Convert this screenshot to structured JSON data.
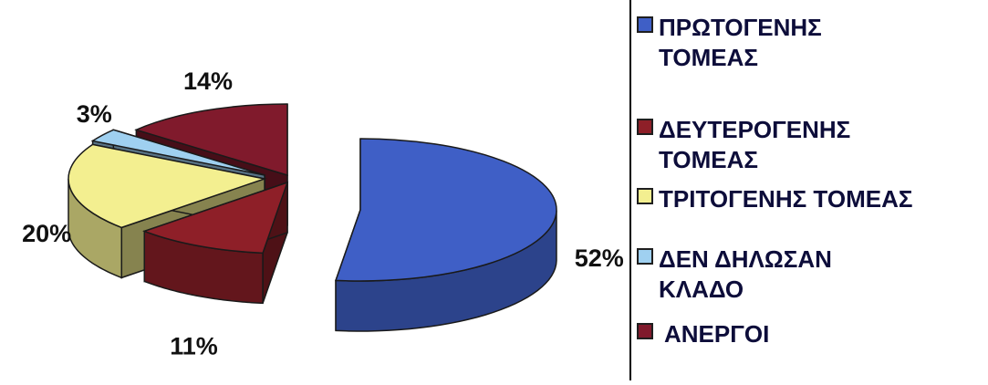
{
  "chart_data": {
    "type": "pie",
    "style": "3d-exploded",
    "categories": [
      "ΠΡΩΤΟΓΕΝΗΣ ΤΟΜΕΑΣ",
      "ΔΕΥΤΕΡΟΓΕΝΗΣ ΤΟΜΕΑΣ",
      "ΤΡΙΤΟΓΕΝΗΣ ΤΟΜΕΑΣ",
      "ΔΕΝ ΔΗΛΩΣΑΝ ΚΛΑΔΟ",
      "ΑΝΕΡΓΟΙ"
    ],
    "values": [
      52,
      11,
      20,
      3,
      14
    ],
    "data_labels": [
      "52%",
      "11%",
      "20%",
      "3%",
      "14%"
    ],
    "colors": [
      "#3f5fc6",
      "#8e1f28",
      "#f3ef90",
      "#9fd0f0",
      "#801a2c"
    ],
    "legend_position": "right"
  },
  "legend": {
    "items": [
      {
        "lines": [
          "ΠΡΩΤΟΓΕΝΗΣ",
          "ΤΟΜΕΑΣ"
        ],
        "color": "#3f5fc6"
      },
      {
        "lines": [
          "ΔΕΥΤΕΡΟΓΕΝΗΣ",
          "ΤΟΜΕΑΣ"
        ],
        "color": "#8e1f28"
      },
      {
        "lines": [
          "ΤΡΙΤΟΓΕΝΗΣ ΤΟΜΕΑΣ"
        ],
        "color": "#f3ef90"
      },
      {
        "lines": [
          "ΔΕΝ ΔΗΛΩΣΑΝ",
          "ΚΛΑΔΟ"
        ],
        "color": "#9fd0f0"
      },
      {
        "lines": [
          "ΑΝΕΡΓΟΙ"
        ],
        "color": "#801a2c"
      }
    ]
  }
}
